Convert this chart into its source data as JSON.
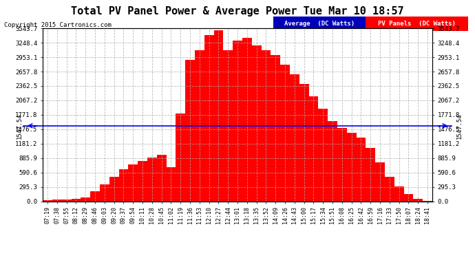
{
  "title": "Total PV Panel Power & Average Power Tue Mar 10 18:57",
  "copyright": "Copyright 2015 Cartronics.com",
  "yticks": [
    0.0,
    295.3,
    590.6,
    885.9,
    1181.2,
    1476.5,
    1771.8,
    2067.2,
    2362.5,
    2657.8,
    2953.1,
    3248.4,
    3543.7
  ],
  "ymax": 3543.7,
  "ymin": 0.0,
  "avg_line": 1547.54,
  "avg_label": "1547.54",
  "fill_color": "#FF0000",
  "avg_line_color": "#0000FF",
  "fig_bg_color": "#ffffff",
  "plot_bg_color": "#ffffff",
  "grid_color": "#aaaaaa",
  "legend_avg_bg": "#0000BB",
  "legend_pv_bg": "#FF0000",
  "xtick_labels": [
    "07:19",
    "07:38",
    "07:55",
    "08:12",
    "08:29",
    "08:46",
    "09:03",
    "09:20",
    "09:37",
    "09:54",
    "10:11",
    "10:28",
    "10:45",
    "11:02",
    "11:19",
    "11:36",
    "11:53",
    "12:10",
    "12:27",
    "12:44",
    "13:01",
    "13:18",
    "13:35",
    "13:52",
    "14:09",
    "14:26",
    "14:43",
    "15:00",
    "15:17",
    "15:34",
    "15:51",
    "16:08",
    "16:25",
    "16:42",
    "16:59",
    "17:16",
    "17:33",
    "17:50",
    "18:07",
    "18:24",
    "18:41"
  ],
  "pv_values": [
    20,
    30,
    40,
    50,
    80,
    200,
    350,
    500,
    650,
    750,
    820,
    900,
    950,
    700,
    1800,
    2900,
    3100,
    3400,
    3500,
    3100,
    3300,
    3350,
    3200,
    3100,
    3000,
    2800,
    2600,
    2400,
    2150,
    1900,
    1650,
    1500,
    1400,
    1300,
    1100,
    800,
    500,
    300,
    150,
    50,
    10
  ]
}
